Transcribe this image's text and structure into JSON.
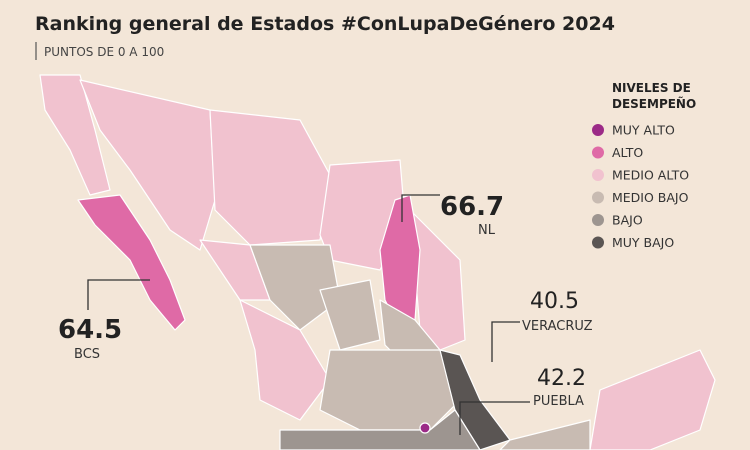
{
  "header": {
    "title": "Ranking general de Estados #ConLupaDeGénero 2024",
    "subtitle": "PUNTOS DE 0 A 100"
  },
  "legend": {
    "title_lines": [
      "NIVELES DE",
      "DESEMPEÑO"
    ],
    "items": [
      {
        "label": "MUY ALTO",
        "color": "#9b2a87"
      },
      {
        "label": "ALTO",
        "color": "#df6aa6"
      },
      {
        "label": "MEDIO ALTO",
        "color": "#f1c2cf"
      },
      {
        "label": "MEDIO BAJO",
        "color": "#c8bbb2"
      },
      {
        "label": "BAJO",
        "color": "#9d9590"
      },
      {
        "label": "MUY BAJO",
        "color": "#5a5553"
      }
    ]
  },
  "callouts": [
    {
      "value": 66.7,
      "label": "NL"
    },
    {
      "value": 64.5,
      "label": "BCS"
    },
    {
      "value": 40.5,
      "label": "VERACRUZ"
    },
    {
      "value": 42.2,
      "label": "PUEBLA"
    }
  ]
}
